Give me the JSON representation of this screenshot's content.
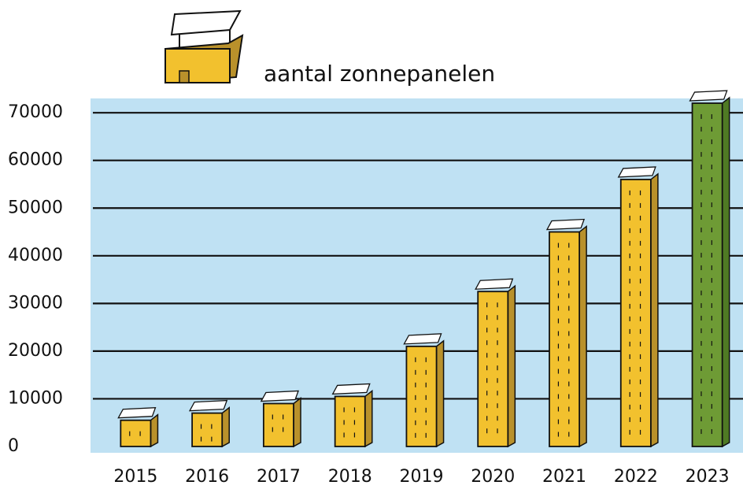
{
  "chart_data": {
    "type": "bar",
    "categories": [
      "2015",
      "2016",
      "2017",
      "2018",
      "2019",
      "2020",
      "2021",
      "2022",
      "2023"
    ],
    "series": [
      {
        "name": "aantal zonnepanelen",
        "color": "#f2c12e",
        "values": [
          5500,
          7000,
          9000,
          10500,
          21000,
          32500,
          45000,
          56000,
          72000
        ]
      }
    ],
    "colors": [
      "#f2c12e",
      "#f2c12e",
      "#f2c12e",
      "#f2c12e",
      "#f2c12e",
      "#f2c12e",
      "#f2c12e",
      "#f2c12e",
      "#6e9b35"
    ],
    "ylim": [
      0,
      73000
    ],
    "yticks": [
      0,
      10000,
      20000,
      30000,
      40000,
      50000,
      60000,
      70000
    ],
    "grid": true
  }
}
